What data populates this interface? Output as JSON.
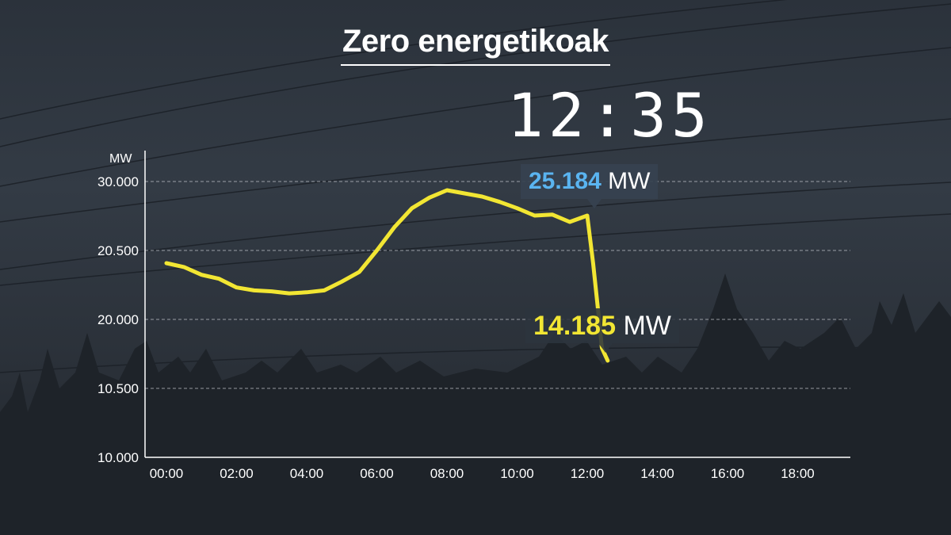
{
  "title": "Zero energetikoak",
  "clock": "12:35",
  "chart_data": {
    "type": "line",
    "title": "Zero energetikoak",
    "ylabel": "MW",
    "xlabel": "",
    "y_ticks": [
      "30.000",
      "20.500",
      "20.000",
      "10.500",
      "10.000"
    ],
    "x_ticks": [
      "00:00",
      "02:00",
      "04:00",
      "06:00",
      "08:00",
      "10:00",
      "12:00",
      "14:00",
      "16:00",
      "18:00"
    ],
    "grid": "horizontal dashed",
    "series": [
      {
        "color": "#f2e633",
        "x": [
          "00:00",
          "00:30",
          "01:00",
          "01:30",
          "02:00",
          "02:30",
          "03:00",
          "03:30",
          "04:00",
          "04:30",
          "05:00",
          "05:30",
          "06:00",
          "06:30",
          "07:00",
          "07:30",
          "08:00",
          "08:30",
          "09:00",
          "09:30",
          "10:00",
          "10:30",
          "11:00",
          "11:30",
          "12:00",
          "12:10",
          "12:20",
          "12:25",
          "12:35"
        ],
        "values": [
          24200,
          23800,
          23000,
          22600,
          21700,
          21400,
          21300,
          21100,
          21200,
          21400,
          22300,
          23300,
          25400,
          27600,
          29400,
          30400,
          31100,
          30800,
          30500,
          30000,
          29400,
          28700,
          28800,
          28100,
          28700,
          24200,
          18500,
          15500,
          14185
        ]
      }
    ],
    "annotations": [
      {
        "value": "25.184",
        "unit": "MW",
        "color": "#5ab4f0"
      },
      {
        "value": "14.185",
        "unit": "MW",
        "color": "#f2e633"
      }
    ]
  }
}
